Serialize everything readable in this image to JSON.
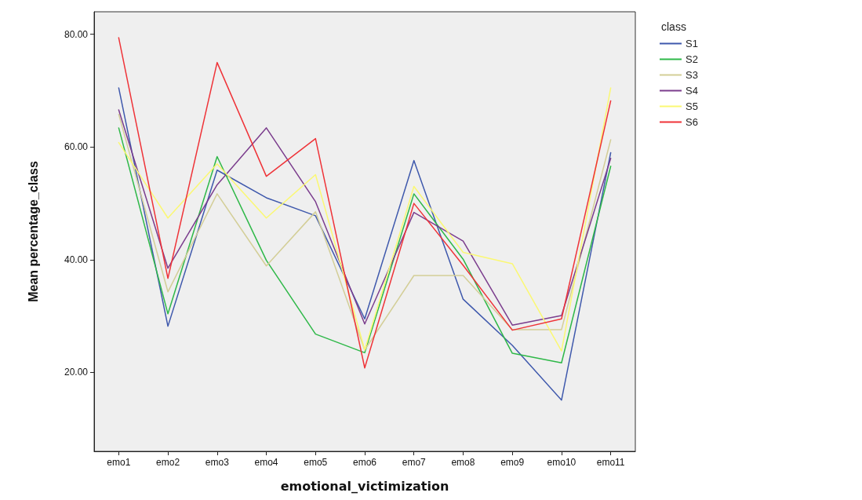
{
  "chart_data": {
    "type": "line",
    "xlabel": "emotional_victimization",
    "ylabel": "Mean percentage_class",
    "legend_title": "class",
    "categories": [
      "emo1",
      "emo2",
      "emo3",
      "emo4",
      "emo5",
      "emo6",
      "emo7",
      "emo8",
      "emo9",
      "emo10",
      "emo11"
    ],
    "ylim": [
      6,
      84
    ],
    "yticks": [
      {
        "value": 20,
        "label": "20.00"
      },
      {
        "value": 40,
        "label": "40.00"
      },
      {
        "value": 60,
        "label": "60.00"
      },
      {
        "value": 80,
        "label": "80.00"
      }
    ],
    "grid": false,
    "legend": "right",
    "marker": "none",
    "line_style": "solid",
    "series": [
      {
        "name": "S1",
        "color": "#3e58ac",
        "values": [
          70.5,
          28.2,
          55.9,
          51.0,
          47.8,
          29.5,
          57.6,
          33.0,
          24.8,
          15.1,
          59.0
        ]
      },
      {
        "name": "S2",
        "color": "#2eb848",
        "values": [
          63.4,
          30.4,
          58.3,
          39.9,
          26.8,
          23.5,
          51.7,
          40.1,
          23.4,
          21.7,
          56.6
        ]
      },
      {
        "name": "S3",
        "color": "#d3ce97",
        "values": [
          65.8,
          34.3,
          51.7,
          38.9,
          48.5,
          24.0,
          37.2,
          37.2,
          27.6,
          27.6,
          61.3
        ]
      },
      {
        "name": "S4",
        "color": "#7b3d8d",
        "values": [
          66.6,
          38.5,
          53.3,
          63.4,
          50.3,
          28.6,
          48.4,
          43.3,
          28.4,
          30.1,
          58.0
        ]
      },
      {
        "name": "S5",
        "color": "#fbf873",
        "values": [
          60.8,
          47.4,
          57.0,
          47.4,
          55.1,
          24.0,
          53.0,
          41.3,
          39.3,
          23.8,
          70.5
        ]
      },
      {
        "name": "S6",
        "color": "#ef3338",
        "values": [
          79.4,
          36.7,
          75.0,
          54.8,
          61.5,
          20.8,
          50.0,
          39.0,
          27.5,
          29.5,
          68.2
        ]
      }
    ]
  }
}
